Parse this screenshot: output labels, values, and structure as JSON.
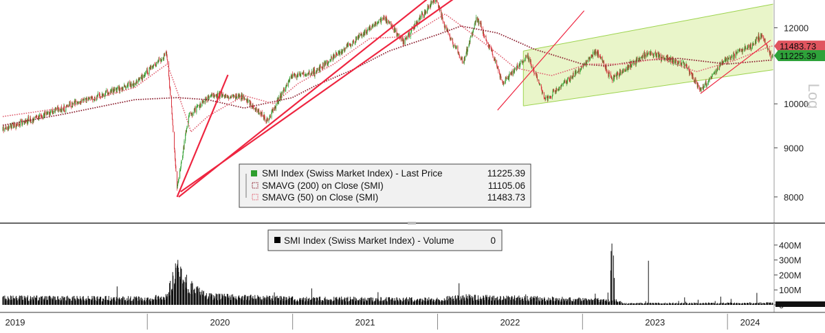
{
  "chart_data": [
    {
      "type": "candlestick",
      "scale": "log",
      "scale_label": "Log",
      "ylim": [
        7600,
        12700
      ],
      "y_ticks": [
        {
          "value": 12000,
          "label": "12000"
        },
        {
          "value": 10000,
          "label": "10000"
        },
        {
          "value": 9000,
          "label": "9000"
        },
        {
          "value": 8000,
          "label": "8000"
        }
      ],
      "price_anchors": [
        [
          "2019-01-02",
          9400
        ],
        [
          "2019-06-01",
          9900
        ],
        [
          "2019-12-01",
          10500
        ],
        [
          "2020-02-19",
          11270
        ],
        [
          "2020-03-16",
          8150
        ],
        [
          "2020-04-15",
          9700
        ],
        [
          "2020-06-08",
          10200
        ],
        [
          "2020-09-01",
          10150
        ],
        [
          "2020-10-30",
          9600
        ],
        [
          "2020-12-31",
          10700
        ],
        [
          "2021-03-01",
          10800
        ],
        [
          "2021-06-01",
          11600
        ],
        [
          "2021-08-20",
          12300
        ],
        [
          "2021-10-06",
          11600
        ],
        [
          "2021-12-28",
          12900
        ],
        [
          "2022-01-20",
          12000
        ],
        [
          "2022-03-07",
          11000
        ],
        [
          "2022-04-10",
          12300
        ],
        [
          "2022-06-16",
          10500
        ],
        [
          "2022-08-15",
          11250
        ],
        [
          "2022-09-30",
          10100
        ],
        [
          "2022-12-31",
          10900
        ],
        [
          "2023-02-06",
          11350
        ],
        [
          "2023-03-15",
          10600
        ],
        [
          "2023-06-15",
          11300
        ],
        [
          "2023-09-15",
          11000
        ],
        [
          "2023-10-26",
          10320
        ],
        [
          "2023-12-29",
          11140
        ],
        [
          "2024-03-01",
          11500
        ],
        [
          "2024-03-28",
          11800
        ],
        [
          "2024-04-19",
          11225.39
        ]
      ],
      "series": [
        {
          "name": "SMI Index (Swiss Market Index) - Last Price",
          "last_value": 11225.39,
          "color": "#2e9e2e",
          "legend_value": "11225.39"
        },
        {
          "name": "SMAVG (200)  on Close (SMI)",
          "last_value": 11105.06,
          "color": "#8b1e2e",
          "legend_value": "11105.06",
          "anchors": [
            [
              "2019-01-02",
              9500
            ],
            [
              "2019-06-01",
              9750
            ],
            [
              "2019-12-01",
              10100
            ],
            [
              "2020-03-16",
              10150
            ],
            [
              "2020-06-01",
              10100
            ],
            [
              "2020-09-01",
              9900
            ],
            [
              "2020-12-31",
              10150
            ],
            [
              "2021-03-01",
              10450
            ],
            [
              "2021-06-01",
              10850
            ],
            [
              "2021-09-01",
              11350
            ],
            [
              "2021-12-31",
              11800
            ],
            [
              "2022-03-01",
              12050
            ],
            [
              "2022-06-01",
              11850
            ],
            [
              "2022-09-01",
              11400
            ],
            [
              "2022-12-31",
              11000
            ],
            [
              "2023-03-01",
              10950
            ],
            [
              "2023-06-01",
              11100
            ],
            [
              "2023-09-01",
              11150
            ],
            [
              "2023-12-31",
              11000
            ],
            [
              "2024-04-19",
              11105
            ]
          ]
        },
        {
          "name": "SMAVG (50)  on Close (SMI)",
          "last_value": 11483.73,
          "color": "#e06070",
          "legend_value": "11483.73",
          "anchors": [
            [
              "2019-01-02",
              9700
            ],
            [
              "2019-06-01",
              9900
            ],
            [
              "2019-12-01",
              10400
            ],
            [
              "2020-02-20",
              11000
            ],
            [
              "2020-04-20",
              9350
            ],
            [
              "2020-06-01",
              9700
            ],
            [
              "2020-09-01",
              10200
            ],
            [
              "2020-11-15",
              10000
            ],
            [
              "2021-01-15",
              10500
            ],
            [
              "2021-04-15",
              11000
            ],
            [
              "2021-07-15",
              11700
            ],
            [
              "2021-10-20",
              11750
            ],
            [
              "2022-01-20",
              12400
            ],
            [
              "2022-04-01",
              11800
            ],
            [
              "2022-07-15",
              10900
            ],
            [
              "2022-10-15",
              10700
            ],
            [
              "2023-01-15",
              11000
            ],
            [
              "2023-04-15",
              11000
            ],
            [
              "2023-07-15",
              11150
            ],
            [
              "2023-10-15",
              10800
            ],
            [
              "2024-01-20",
              11100
            ],
            [
              "2024-04-19",
              11483.73
            ]
          ]
        }
      ],
      "annotations": {
        "trendlines": [
          [
            [
              "2020-03-16",
              8000
            ],
            [
              "2020-07-22",
              10720
            ]
          ],
          [
            [
              "2020-03-20",
              8000
            ],
            [
              "2021-12-31",
              13100
            ]
          ],
          [
            [
              "2020-03-25",
              8100
            ],
            [
              "2022-02-15",
              12900
            ]
          ],
          [
            [
              "2022-06-01",
              9850
            ],
            [
              "2023-01-05",
              12500
            ]
          ],
          [
            [
              "2023-10-25",
              10250
            ],
            [
              "2024-04-19",
              11650
            ]
          ]
        ],
        "channel": {
          "start": "2022-08-05",
          "end": "2024-04-25",
          "upper": [
            11350,
            12700
          ],
          "lower": [
            9950,
            10850
          ]
        }
      },
      "price_labels": [
        {
          "value": 11483.73,
          "label": "11483.73",
          "color": "#e0555f"
        },
        {
          "value": 11225.39,
          "label": "11225.39",
          "color": "#2ea23a"
        }
      ],
      "legend": {
        "placement": "bottom-center",
        "entries": [
          {
            "label": "SMI Index (Swiss Market Index) - Last Price",
            "value": "11225.39"
          },
          {
            "label": "SMAVG (200)  on Close (SMI)",
            "value": "11105.06"
          },
          {
            "label": "SMAVG (50)  on Close (SMI)",
            "value": "11483.73"
          }
        ]
      }
    },
    {
      "type": "bar",
      "series": [
        {
          "name": "SMI Index (Swiss Market Index) - Volume",
          "last_value": "0"
        }
      ],
      "ylim": [
        0,
        450000000
      ],
      "y_ticks": [
        {
          "value": 400000000,
          "label": "400M"
        },
        {
          "value": 300000000,
          "label": "300M"
        },
        {
          "value": 200000000,
          "label": "200M"
        },
        {
          "value": 100000000,
          "label": "100M"
        },
        {
          "value": 0,
          "label": "0"
        }
      ],
      "volume_anchors": [
        [
          "2019-01-02",
          45000000
        ],
        [
          "2019-12-31",
          40000000
        ],
        [
          "2020-02-20",
          60000000
        ],
        [
          "2020-03-16",
          230000000
        ],
        [
          "2020-04-15",
          120000000
        ],
        [
          "2020-06-01",
          55000000
        ],
        [
          "2020-12-31",
          40000000
        ],
        [
          "2021-12-31",
          35000000
        ],
        [
          "2022-03-07",
          50000000
        ],
        [
          "2022-06-30",
          45000000
        ],
        [
          "2022-12-31",
          35000000
        ],
        [
          "2023-03-01",
          30000000
        ],
        [
          "2023-03-31",
          25000000
        ],
        [
          "2023-04-15",
          10000000
        ],
        [
          "2024-04-19",
          12000000
        ]
      ],
      "volume_spikes": [
        [
          "2023-03-16",
          410000000
        ],
        [
          "2023-03-14",
          360000000
        ],
        [
          "2023-03-20",
          330000000
        ],
        [
          "2023-03-13",
          230000000
        ],
        [
          "2023-03-22",
          180000000
        ],
        [
          "2023-06-16",
          295000000
        ],
        [
          "2024-03-15",
          80000000
        ],
        [
          "2023-12-15",
          55000000
        ],
        [
          "2023-09-15",
          50000000
        ],
        [
          "2024-01-10",
          40000000
        ]
      ],
      "legend": {
        "placement": "top-center",
        "entries": [
          {
            "label": "SMI Index (Swiss Market Index) - Volume",
            "value": "0"
          }
        ]
      }
    }
  ],
  "x_axis": {
    "start": "2019-01-02",
    "end": "2024-04-24",
    "ticks": [
      "2019",
      "2020",
      "2021",
      "2022",
      "2023",
      "2024"
    ],
    "tick_dates": [
      "2019-01-01",
      "2020-01-01",
      "2021-01-01",
      "2022-01-01",
      "2023-01-01",
      "2024-01-01"
    ]
  },
  "colors": {
    "candle_up": "#2e9e2e",
    "candle_down": "#d8303a",
    "trendline": "#ee2540",
    "channel_fill": "#e9f5c9",
    "channel_line": "#9cd34c",
    "volume": "#111111"
  }
}
